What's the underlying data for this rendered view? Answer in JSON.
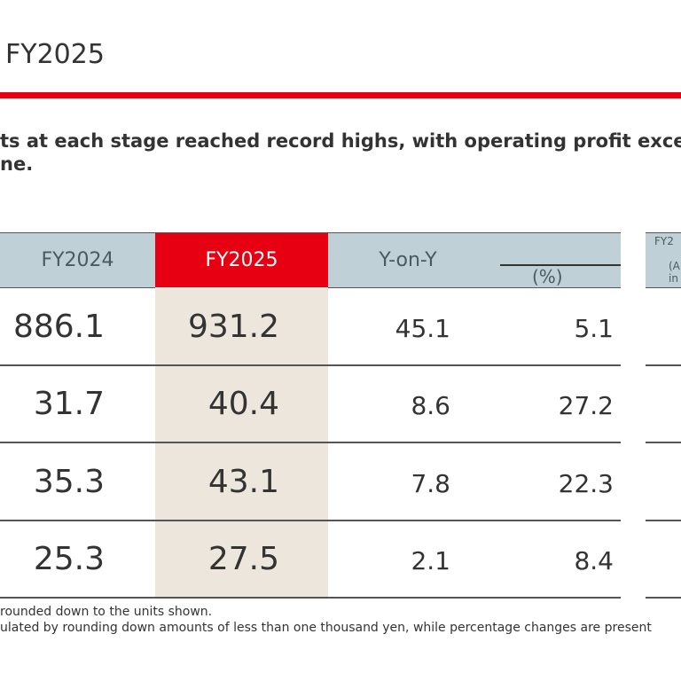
{
  "page": {
    "title": "FY2025",
    "subtitle_lines": [
      "ts at each stage reached record highs, with operating profit exce",
      "ne."
    ]
  },
  "table": {
    "headers": {
      "fy2024": "FY2024",
      "fy2025": "FY2025",
      "yoy": "Y-on-Y",
      "pct": "(%)"
    },
    "right_header_fragments": [
      "FY2",
      "(A",
      "in"
    ],
    "rows": [
      {
        "fy2024": "886.1",
        "fy2025": "931.2",
        "yoy": "45.1",
        "pct": "5.1"
      },
      {
        "fy2024": "31.7",
        "fy2025": "40.4",
        "yoy": "8.6",
        "pct": "27.2"
      },
      {
        "fy2024": "35.3",
        "fy2025": "43.1",
        "yoy": "7.8",
        "pct": "22.3"
      },
      {
        "fy2024": "25.3",
        "fy2025": "27.5",
        "yoy": "2.1",
        "pct": "8.4"
      }
    ]
  },
  "footnotes": [
    " rounded down to the units shown.",
    "ulated by rounding down amounts of less than one thousand yen, while percentage changes are present"
  ],
  "colors": {
    "accent_red": "#e60012",
    "header_bg": "#bfd1d6",
    "highlight_col_bg": "#ede6dc"
  }
}
